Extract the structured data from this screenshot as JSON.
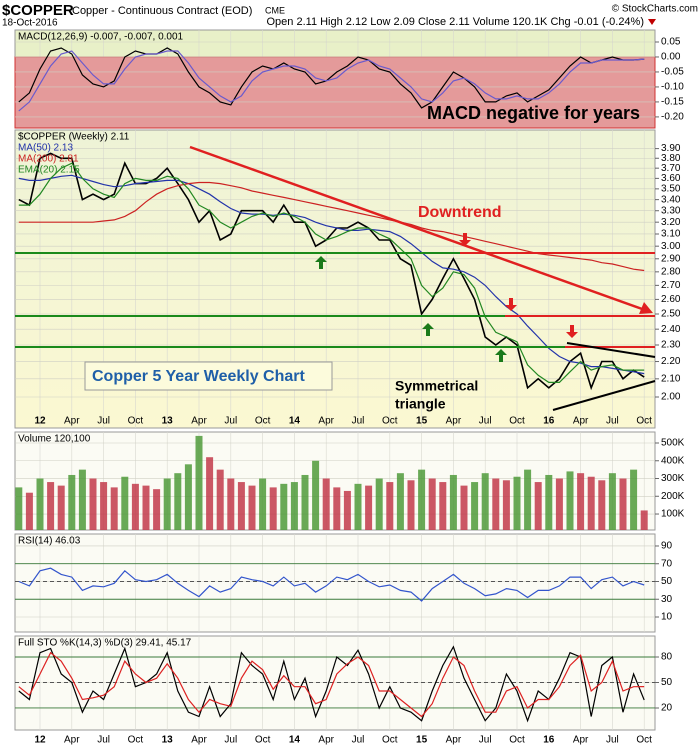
{
  "header": {
    "symbol": "$COPPER",
    "name": "Copper - Continuous Contract (EOD)",
    "exchange": "CME",
    "watermark": "© StockCharts.com",
    "date": "18-Oct-2016",
    "quote": "Open 2.11 High 2.12 Low 2.09 Close 2.11 Volume 120.1K Chg -0.01 (-0.24%)"
  },
  "chart_data": [
    {
      "type": "line",
      "legend": "MACD(12,26,9) -0.007, -0.007, 0.001",
      "annotation": "MACD negative for years",
      "ylim": [
        -0.237,
        0.09
      ],
      "yticks": [
        0.05,
        {
          "value": 0,
          "label": "0.00"
        },
        -0.05,
        {
          "value": -0.1,
          "label": "-0.10"
        },
        -0.15,
        {
          "value": -0.2,
          "label": "-0.20"
        }
      ],
      "series": [
        {
          "color": "#000000",
          "values": [
            -0.15,
            -0.12,
            -0.04,
            0.02,
            0.03,
            0.01,
            -0.06,
            -0.09,
            -0.1,
            -0.08,
            0.0,
            0.02,
            0.01,
            0.01,
            0.03,
            0.01,
            -0.05,
            -0.1,
            -0.12,
            -0.15,
            -0.16,
            -0.1,
            -0.05,
            -0.03,
            -0.04,
            -0.02,
            -0.04,
            -0.05,
            -0.09,
            -0.08,
            -0.05,
            -0.03,
            0.0,
            -0.01,
            -0.04,
            -0.05,
            -0.09,
            -0.12,
            -0.17,
            -0.15,
            -0.1,
            -0.05,
            -0.07,
            -0.1,
            -0.15,
            -0.15,
            -0.13,
            -0.12,
            -0.15,
            -0.13,
            -0.11,
            -0.07,
            -0.03,
            0.0,
            -0.02,
            -0.01,
            0.0,
            -0.01,
            -0.01,
            -0.007
          ]
        },
        {
          "color": "#6a5acd",
          "values": [
            -0.18,
            -0.15,
            -0.09,
            -0.03,
            0.01,
            0.02,
            -0.02,
            -0.06,
            -0.09,
            -0.09,
            -0.04,
            0.0,
            0.01,
            0.01,
            0.02,
            0.02,
            -0.02,
            -0.07,
            -0.1,
            -0.13,
            -0.15,
            -0.13,
            -0.08,
            -0.05,
            -0.04,
            -0.03,
            -0.03,
            -0.04,
            -0.07,
            -0.08,
            -0.07,
            -0.04,
            -0.02,
            -0.01,
            -0.03,
            -0.04,
            -0.07,
            -0.1,
            -0.14,
            -0.15,
            -0.12,
            -0.08,
            -0.07,
            -0.09,
            -0.12,
            -0.14,
            -0.14,
            -0.13,
            -0.14,
            -0.14,
            -0.12,
            -0.09,
            -0.05,
            -0.02,
            -0.02,
            -0.01,
            -0.01,
            -0.01,
            -0.01,
            -0.007
          ]
        }
      ]
    },
    {
      "type": "line",
      "log": true,
      "grid": true,
      "categories": [
        null,
        null,
        "12",
        null,
        null,
        "Apr",
        null,
        null,
        "Jul",
        null,
        null,
        "Oct",
        null,
        null,
        "13",
        null,
        null,
        "Apr",
        null,
        null,
        "Jul",
        null,
        null,
        "Oct",
        null,
        null,
        "14",
        null,
        null,
        "Apr",
        null,
        null,
        "Jul",
        null,
        null,
        "Oct",
        null,
        null,
        "15",
        null,
        null,
        "Apr",
        null,
        null,
        "Jul",
        null,
        null,
        "Oct",
        null,
        null,
        "16",
        null,
        null,
        "Apr",
        null,
        null,
        "Jul",
        null,
        null,
        "Oct"
      ],
      "ylim": [
        1.84,
        4.1
      ],
      "yticks": [
        {
          "value": 2,
          "label": "2.00"
        },
        {
          "value": 2.1,
          "label": "2.10"
        },
        {
          "value": 2.2,
          "label": "2.20"
        },
        {
          "value": 2.3,
          "label": "2.30"
        },
        {
          "value": 2.4,
          "label": "2.40"
        },
        {
          "value": 2.5,
          "label": "2.50"
        },
        {
          "value": 2.6,
          "label": "2.60"
        },
        {
          "value": 2.7,
          "label": "2.70"
        },
        {
          "value": 2.8,
          "label": "2.80"
        },
        {
          "value": 2.9,
          "label": "2.90"
        },
        {
          "value": 3,
          "label": "3.00"
        },
        {
          "value": 3.1,
          "label": "3.10"
        },
        {
          "value": 3.2,
          "label": "3.20"
        },
        {
          "value": 3.3,
          "label": "3.30"
        },
        {
          "value": 3.4,
          "label": "3.40"
        },
        {
          "value": 3.5,
          "label": "3.50"
        },
        {
          "value": 3.6,
          "label": "3.60"
        },
        {
          "value": 3.7,
          "label": "3.70"
        },
        {
          "value": 3.8,
          "label": "3.80"
        },
        {
          "value": 3.9,
          "label": "3.90"
        }
      ],
      "annotations": {
        "downtrend": "Downtrend",
        "triangle": [
          "Symmetrical",
          "triangle"
        ],
        "title_box": "Copper 5 Year Weekly Chart"
      },
      "series": [
        {
          "name": "$COPPER (Weekly) 2.11",
          "color": "#000000",
          "values": [
            3.4,
            3.35,
            3.8,
            3.85,
            3.8,
            3.8,
            3.4,
            3.45,
            3.4,
            3.45,
            3.75,
            3.55,
            3.55,
            3.6,
            3.7,
            3.55,
            3.4,
            3.2,
            3.3,
            3.05,
            3.1,
            3.3,
            3.3,
            3.3,
            3.2,
            3.35,
            3.2,
            3.2,
            3.0,
            3.05,
            3.15,
            3.15,
            3.2,
            3.15,
            3.05,
            3.05,
            2.9,
            2.85,
            2.5,
            2.6,
            2.75,
            2.9,
            2.75,
            2.6,
            2.35,
            2.3,
            2.35,
            2.3,
            2.05,
            2.1,
            2.05,
            2.1,
            2.2,
            2.25,
            2.05,
            2.2,
            2.2,
            2.1,
            2.15,
            2.11
          ]
        },
        {
          "name": "MA(50) 2.13",
          "color": "#2233aa",
          "values": [
            3.6,
            3.58,
            3.58,
            3.6,
            3.62,
            3.63,
            3.6,
            3.57,
            3.54,
            3.52,
            3.53,
            3.55,
            3.56,
            3.57,
            3.58,
            3.58,
            3.55,
            3.5,
            3.45,
            3.38,
            3.32,
            3.28,
            3.27,
            3.27,
            3.26,
            3.27,
            3.26,
            3.24,
            3.2,
            3.17,
            3.15,
            3.13,
            3.13,
            3.14,
            3.13,
            3.12,
            3.08,
            3.02,
            2.95,
            2.88,
            2.83,
            2.82,
            2.8,
            2.76,
            2.7,
            2.62,
            2.55,
            2.5,
            2.42,
            2.35,
            2.28,
            2.23,
            2.2,
            2.19,
            2.17,
            2.17,
            2.16,
            2.15,
            2.14,
            2.13
          ]
        },
        {
          "name": "MA(200) 2.81",
          "color": "#cc2222",
          "values": [
            3.2,
            3.2,
            3.2,
            3.2,
            3.2,
            3.2,
            3.2,
            3.2,
            3.21,
            3.22,
            3.25,
            3.3,
            3.38,
            3.45,
            3.5,
            3.53,
            3.55,
            3.56,
            3.56,
            3.55,
            3.53,
            3.51,
            3.48,
            3.46,
            3.44,
            3.42,
            3.4,
            3.38,
            3.36,
            3.34,
            3.32,
            3.3,
            3.28,
            3.26,
            3.24,
            3.22,
            3.2,
            3.18,
            3.15,
            3.13,
            3.12,
            3.1,
            3.08,
            3.06,
            3.04,
            3.02,
            3.0,
            2.98,
            2.96,
            2.94,
            2.93,
            2.92,
            2.91,
            2.9,
            2.89,
            2.87,
            2.86,
            2.84,
            2.82,
            2.81
          ]
        },
        {
          "name": "EMA(20) 2.15",
          "color": "#228822",
          "values": [
            3.35,
            3.35,
            3.45,
            3.6,
            3.7,
            3.75,
            3.6,
            3.5,
            3.45,
            3.42,
            3.55,
            3.6,
            3.58,
            3.58,
            3.62,
            3.6,
            3.5,
            3.35,
            3.3,
            3.2,
            3.15,
            3.2,
            3.25,
            3.28,
            3.25,
            3.28,
            3.25,
            3.2,
            3.1,
            3.05,
            3.08,
            3.12,
            3.15,
            3.15,
            3.1,
            3.06,
            2.98,
            2.9,
            2.7,
            2.62,
            2.68,
            2.8,
            2.78,
            2.68,
            2.48,
            2.38,
            2.35,
            2.32,
            2.18,
            2.12,
            2.08,
            2.08,
            2.14,
            2.2,
            2.15,
            2.17,
            2.18,
            2.15,
            2.15,
            2.15
          ]
        }
      ]
    },
    {
      "type": "bar",
      "legend": "Volume 120,100",
      "up_color": "#4f9a3a",
      "down_color": "#c23a4a",
      "ylim": [
        10000,
        562000
      ],
      "yticks": [
        {
          "value": 500000,
          "label": "500K"
        },
        {
          "value": 400000,
          "label": "400K"
        },
        {
          "value": 300000,
          "label": "300K"
        },
        {
          "value": 200000,
          "label": "200K"
        },
        {
          "value": 100000,
          "label": "100K"
        }
      ],
      "values": [
        250000,
        220000,
        300000,
        280000,
        260000,
        320000,
        350000,
        300000,
        280000,
        250000,
        310000,
        270000,
        260000,
        240000,
        300000,
        330000,
        380000,
        540000,
        420000,
        350000,
        300000,
        280000,
        260000,
        300000,
        250000,
        270000,
        280000,
        320000,
        400000,
        300000,
        250000,
        230000,
        270000,
        260000,
        300000,
        280000,
        330000,
        290000,
        350000,
        300000,
        280000,
        320000,
        260000,
        280000,
        330000,
        300000,
        290000,
        310000,
        350000,
        280000,
        320000,
        300000,
        340000,
        330000,
        310000,
        290000,
        330000,
        300000,
        350000,
        120100
      ]
    },
    {
      "type": "line",
      "legend": "RSI(14) 46.03",
      "ylim": [
        -6.9,
        103.5
      ],
      "yticks": [
        90,
        70,
        50,
        30,
        10
      ],
      "ref_lines": [
        70,
        50,
        30
      ],
      "series": [
        {
          "color": "#3355cc",
          "values": [
            50,
            45,
            62,
            65,
            58,
            55,
            40,
            45,
            44,
            48,
            62,
            52,
            50,
            52,
            58,
            48,
            40,
            33,
            45,
            38,
            42,
            55,
            52,
            50,
            45,
            55,
            45,
            48,
            38,
            45,
            55,
            52,
            58,
            50,
            44,
            46,
            40,
            38,
            28,
            42,
            50,
            58,
            48,
            42,
            34,
            36,
            42,
            40,
            32,
            40,
            40,
            45,
            55,
            55,
            42,
            52,
            55,
            45,
            50,
            46.03
          ]
        }
      ]
    },
    {
      "type": "line",
      "legend": "Full STO %K(14,3) %D(3) 29.41, 45.17",
      "ylim": [
        -5.9,
        104.7
      ],
      "yticks": [
        80,
        50,
        20
      ],
      "ref_lines": [
        80,
        50,
        20
      ],
      "series": [
        {
          "color": "#000000",
          "values": [
            40,
            30,
            85,
            90,
            60,
            50,
            15,
            40,
            30,
            60,
            90,
            45,
            50,
            60,
            85,
            40,
            15,
            10,
            45,
            10,
            25,
            85,
            70,
            60,
            30,
            75,
            30,
            55,
            10,
            40,
            80,
            70,
            88,
            60,
            20,
            45,
            20,
            15,
            5,
            40,
            70,
            92,
            55,
            30,
            5,
            20,
            60,
            40,
            5,
            40,
            30,
            55,
            85,
            80,
            10,
            70,
            80,
            15,
            60,
            29.41
          ]
        },
        {
          "color": "#dd2222",
          "values": [
            45,
            35,
            60,
            85,
            75,
            55,
            30,
            32,
            35,
            45,
            75,
            60,
            50,
            55,
            72,
            55,
            30,
            15,
            30,
            25,
            22,
            55,
            75,
            65,
            42,
            58,
            45,
            45,
            25,
            30,
            60,
            72,
            80,
            70,
            40,
            40,
            30,
            20,
            10,
            25,
            55,
            80,
            70,
            40,
            15,
            15,
            40,
            45,
            20,
            30,
            30,
            45,
            70,
            82,
            40,
            50,
            75,
            40,
            45,
            45.17
          ]
        }
      ]
    }
  ]
}
